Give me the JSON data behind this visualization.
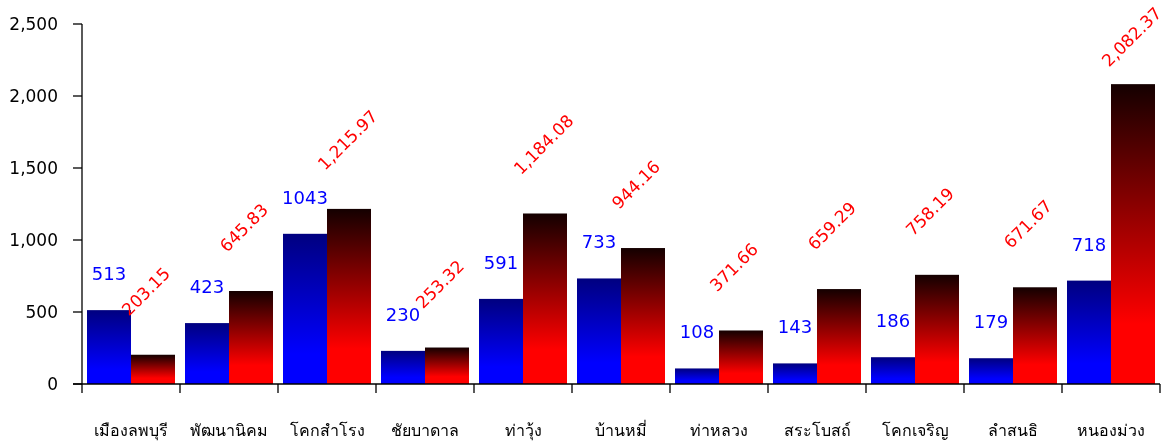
{
  "chart_data": {
    "type": "bar",
    "categories": [
      "เมืองลพบุรี",
      "พัฒนานิคม",
      "โคกสำโรง",
      "ชัยบาดาล",
      "ท่าวุ้ง",
      "บ้านหมี่",
      "ท่าหลวง",
      "สระโบสถ์",
      "โคกเจริญ",
      "ลำสนธิ",
      "หนองม่วง"
    ],
    "series": [
      {
        "color": "#0000ff",
        "values": [
          513,
          423,
          1043,
          230,
          591,
          733,
          108,
          143,
          186,
          179,
          718
        ],
        "value_labels": [
          "513",
          "423",
          "1043",
          "230",
          "591",
          "733",
          "108",
          "143",
          "186",
          "179",
          "718"
        ]
      },
      {
        "color": "#ff0000",
        "values": [
          203.15,
          645.83,
          1215.97,
          253.32,
          1184.08,
          944.16,
          371.66,
          659.29,
          758.19,
          671.67,
          2082.37
        ],
        "value_labels": [
          "203.15",
          "645.83",
          "1,215.97",
          "253.32",
          "1,184.08",
          "944.16",
          "371.66",
          "659.29",
          "758.19",
          "671.67",
          "2,082.37"
        ]
      }
    ],
    "ylim": [
      0,
      2500
    ],
    "yticks": [
      0,
      500,
      {
        "value": 1000,
        "label": "1,000"
      },
      {
        "value": 1500,
        "label": "1,500"
      },
      {
        "value": 2000,
        "label": "2,000"
      },
      {
        "value": 2500,
        "label": "2,500"
      }
    ]
  }
}
